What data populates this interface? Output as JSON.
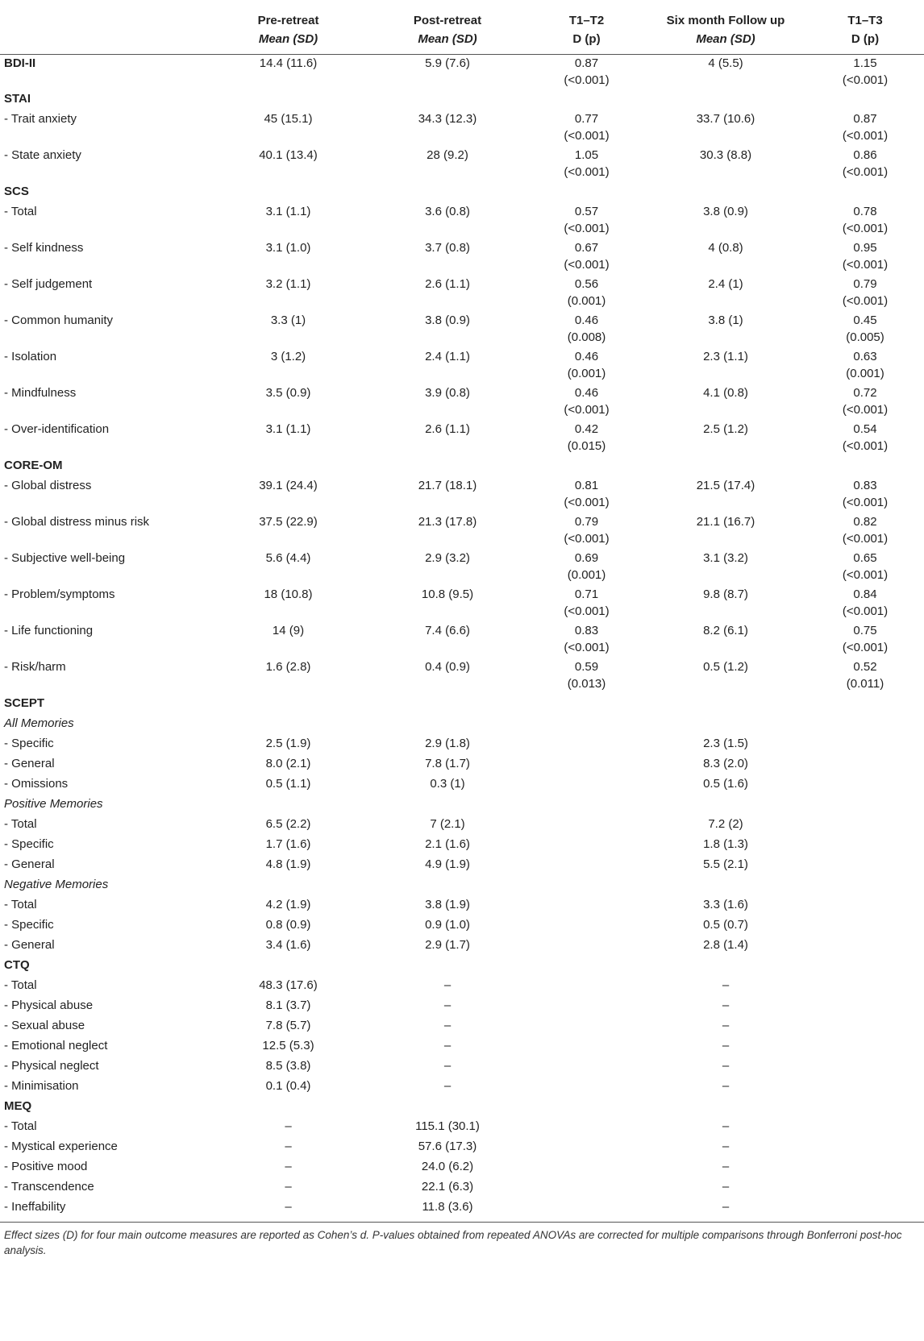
{
  "headers": {
    "col1": {
      "title": "Pre-retreat",
      "sub": "Mean (SD)"
    },
    "col2": {
      "title": "Post-retreat",
      "sub": "Mean (SD)"
    },
    "col3": {
      "title": "T1–T2",
      "sub": "D (p)"
    },
    "col4": {
      "title": "Six month Follow up",
      "sub": "Mean (SD)"
    },
    "col5": {
      "title": "T1–T3",
      "sub": "D (p)"
    }
  },
  "rows": [
    {
      "type": "section",
      "label": "BDI-II",
      "pre": "14.4 (11.6)",
      "post": "5.9 (7.6)",
      "d12": "0.87",
      "p12": "(<0.001)",
      "fu": "4 (5.5)",
      "d13": "1.15",
      "p13": "(<0.001)"
    },
    {
      "type": "section",
      "label": "STAI"
    },
    {
      "type": "item",
      "label": "-  Trait anxiety",
      "pre": "45 (15.1)",
      "post": "34.3 (12.3)",
      "d12": "0.77",
      "p12": "(<0.001)",
      "fu": "33.7 (10.6)",
      "d13": "0.87",
      "p13": "(<0.001)"
    },
    {
      "type": "item",
      "label": "-  State anxiety",
      "pre": "40.1 (13.4)",
      "post": "28 (9.2)",
      "d12": "1.05",
      "p12": "(<0.001)",
      "fu": "30.3 (8.8)",
      "d13": "0.86",
      "p13": "(<0.001)"
    },
    {
      "type": "section",
      "label": "SCS"
    },
    {
      "type": "item",
      "label": "-  Total",
      "pre": "3.1 (1.1)",
      "post": "3.6 (0.8)",
      "d12": "0.57",
      "p12": "(<0.001)",
      "fu": "3.8 (0.9)",
      "d13": "0.78",
      "p13": "(<0.001)"
    },
    {
      "type": "item",
      "label": "-  Self kindness",
      "pre": "3.1 (1.0)",
      "post": "3.7 (0.8)",
      "d12": "0.67",
      "p12": "(<0.001)",
      "fu": "4 (0.8)",
      "d13": "0.95",
      "p13": "(<0.001)"
    },
    {
      "type": "item",
      "label": "-  Self judgement",
      "pre": "3.2 (1.1)",
      "post": "2.6 (1.1)",
      "d12": "0.56",
      "p12": "(0.001)",
      "fu": "2.4 (1)",
      "d13": "0.79",
      "p13": "(<0.001)"
    },
    {
      "type": "item",
      "label": "-  Common humanity",
      "pre": "3.3 (1)",
      "post": "3.8 (0.9)",
      "d12": "0.46",
      "p12": "(0.008)",
      "fu": "3.8 (1)",
      "d13": "0.45",
      "p13": "(0.005)"
    },
    {
      "type": "item",
      "label": "-  Isolation",
      "pre": "3 (1.2)",
      "post": "2.4 (1.1)",
      "d12": "0.46",
      "p12": "(0.001)",
      "fu": "2.3 (1.1)",
      "d13": "0.63",
      "p13": "(0.001)"
    },
    {
      "type": "item",
      "label": "-  Mindfulness",
      "pre": "3.5 (0.9)",
      "post": "3.9 (0.8)",
      "d12": "0.46",
      "p12": "(<0.001)",
      "fu": "4.1 (0.8)",
      "d13": "0.72",
      "p13": "(<0.001)"
    },
    {
      "type": "item",
      "label": "-  Over-identification",
      "pre": "3.1 (1.1)",
      "post": "2.6 (1.1)",
      "d12": "0.42",
      "p12": "(0.015)",
      "fu": "2.5 (1.2)",
      "d13": "0.54",
      "p13": "(<0.001)"
    },
    {
      "type": "section",
      "label": "CORE-OM"
    },
    {
      "type": "item",
      "label": "-  Global distress",
      "pre": "39.1 (24.4)",
      "post": "21.7 (18.1)",
      "d12": "0.81",
      "p12": "(<0.001)",
      "fu": "21.5 (17.4)",
      "d13": "0.83",
      "p13": "(<0.001)"
    },
    {
      "type": "item",
      "label": "-  Global distress minus risk",
      "pre": "37.5 (22.9)",
      "post": "21.3 (17.8)",
      "d12": "0.79",
      "p12": "(<0.001)",
      "fu": "21.1 (16.7)",
      "d13": "0.82",
      "p13": "(<0.001)"
    },
    {
      "type": "item",
      "label": "-  Subjective well-being",
      "pre": "5.6 (4.4)",
      "post": "2.9 (3.2)",
      "d12": "0.69",
      "p12": "(0.001)",
      "fu": "3.1 (3.2)",
      "d13": "0.65",
      "p13": "(<0.001)"
    },
    {
      "type": "item",
      "label": "-  Problem/symptoms",
      "pre": "18 (10.8)",
      "post": "10.8 (9.5)",
      "d12": "0.71",
      "p12": "(<0.001)",
      "fu": "9.8 (8.7)",
      "d13": "0.84",
      "p13": "(<0.001)"
    },
    {
      "type": "item",
      "label": "-  Life functioning",
      "pre": "14 (9)",
      "post": "7.4 (6.6)",
      "d12": "0.83",
      "p12": "(<0.001)",
      "fu": "8.2 (6.1)",
      "d13": "0.75",
      "p13": "(<0.001)"
    },
    {
      "type": "item",
      "label": "-  Risk/harm",
      "pre": "1.6 (2.8)",
      "post": "0.4 (0.9)",
      "d12": "0.59",
      "p12": "(0.013)",
      "fu": "0.5 (1.2)",
      "d13": "0.52",
      "p13": "(0.011)"
    },
    {
      "type": "section",
      "label": "SCEPT"
    },
    {
      "type": "subsection",
      "label": "All Memories"
    },
    {
      "type": "item",
      "label": "-  Specific",
      "pre": "2.5 (1.9)",
      "post": "2.9 (1.8)",
      "fu": "2.3 (1.5)"
    },
    {
      "type": "item",
      "label": "-  General",
      "pre": "8.0 (2.1)",
      "post": "7.8 (1.7)",
      "fu": "8.3 (2.0)"
    },
    {
      "type": "item",
      "label": "-  Omissions",
      "pre": "0.5 (1.1)",
      "post": "0.3 (1)",
      "fu": "0.5 (1.6)"
    },
    {
      "type": "subsection",
      "label": "Positive Memories"
    },
    {
      "type": "item",
      "label": "-  Total",
      "pre": "6.5 (2.2)",
      "post": "7 (2.1)",
      "fu": "7.2 (2)"
    },
    {
      "type": "item",
      "label": "-  Specific",
      "pre": "1.7 (1.6)",
      "post": "2.1 (1.6)",
      "fu": "1.8 (1.3)"
    },
    {
      "type": "item",
      "label": "-  General",
      "pre": "4.8 (1.9)",
      "post": "4.9 (1.9)",
      "fu": "5.5 (2.1)"
    },
    {
      "type": "subsection",
      "label": "Negative Memories"
    },
    {
      "type": "item",
      "label": "-  Total",
      "pre": "4.2 (1.9)",
      "post": "3.8 (1.9)",
      "fu": "3.3 (1.6)"
    },
    {
      "type": "item",
      "label": "-  Specific",
      "pre": "0.8 (0.9)",
      "post": "0.9 (1.0)",
      "fu": "0.5 (0.7)"
    },
    {
      "type": "item",
      "label": "-  General",
      "pre": "3.4 (1.6)",
      "post": "2.9 (1.7)",
      "fu": "2.8 (1.4)"
    },
    {
      "type": "section",
      "label": "CTQ"
    },
    {
      "type": "item",
      "label": "-  Total",
      "pre": "48.3 (17.6)",
      "post": "–",
      "fu": "–"
    },
    {
      "type": "item",
      "label": "-  Physical abuse",
      "pre": "8.1 (3.7)",
      "post": "–",
      "fu": "–"
    },
    {
      "type": "item",
      "label": "-  Sexual abuse",
      "pre": "7.8 (5.7)",
      "post": "–",
      "fu": "–"
    },
    {
      "type": "item",
      "label": "-  Emotional neglect",
      "pre": "12.5 (5.3)",
      "post": "–",
      "fu": "–"
    },
    {
      "type": "item",
      "label": "-  Physical neglect",
      "pre": "8.5 (3.8)",
      "post": "–",
      "fu": "–"
    },
    {
      "type": "item",
      "label": "-  Minimisation",
      "pre": "0.1 (0.4)",
      "post": "–",
      "fu": "–"
    },
    {
      "type": "section",
      "label": "MEQ"
    },
    {
      "type": "item",
      "label": "-  Total",
      "pre": "–",
      "post": "115.1 (30.1)",
      "fu": "–"
    },
    {
      "type": "item",
      "label": "-  Mystical experience",
      "pre": "–",
      "post": "57.6 (17.3)",
      "fu": "–"
    },
    {
      "type": "item",
      "label": "-  Positive mood",
      "pre": "–",
      "post": "24.0 (6.2)",
      "fu": "–"
    },
    {
      "type": "item",
      "label": "-  Transcendence",
      "pre": "–",
      "post": "22.1 (6.3)",
      "fu": "–"
    },
    {
      "type": "item",
      "label": "-  Ineffability",
      "pre": "–",
      "post": "11.8 (3.6)",
      "fu": "–"
    }
  ],
  "footnote": "Effect sizes (D) for four main outcome measures are reported as Cohen’s d. P-values obtained from repeated ANOVAs are corrected for multiple comparisons through Bonferroni post-hoc analysis."
}
